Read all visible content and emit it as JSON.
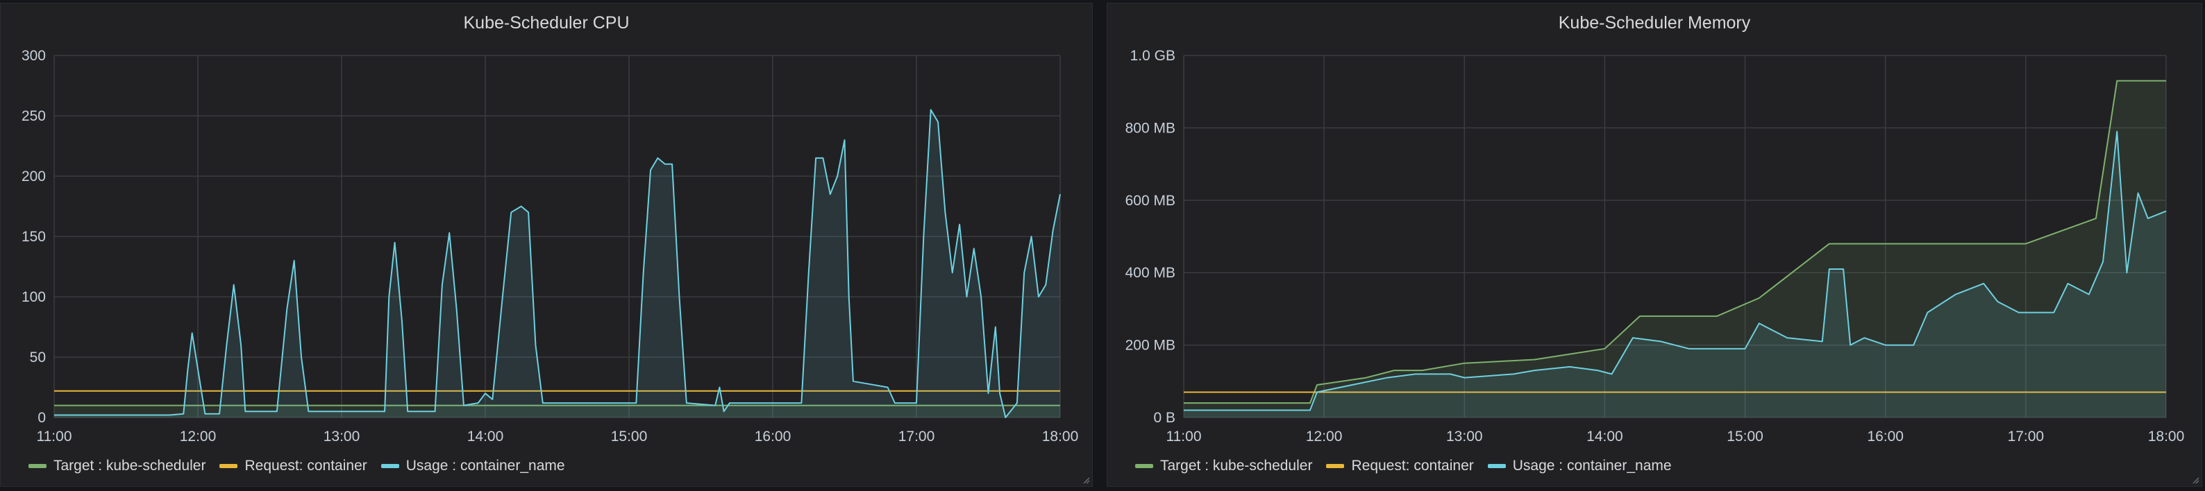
{
  "colors": {
    "target": "#7eb26d",
    "request": "#eab839",
    "usage": "#6ed0e0",
    "grid": "#3b3c40",
    "panel_bg": "#212124",
    "text": "#c7d0d9"
  },
  "chart_data": [
    {
      "id": "cpu",
      "type": "line",
      "title": "Kube-Scheduler CPU",
      "xlabel": "",
      "ylabel": "",
      "xlim": [
        11.0,
        18.0
      ],
      "ylim": [
        0,
        300
      ],
      "x_ticks": [
        {
          "value": 11,
          "label": "11:00"
        },
        {
          "value": 12,
          "label": "12:00"
        },
        {
          "value": 13,
          "label": "13:00"
        },
        {
          "value": 14,
          "label": "14:00"
        },
        {
          "value": 15,
          "label": "15:00"
        },
        {
          "value": 16,
          "label": "16:00"
        },
        {
          "value": 17,
          "label": "17:00"
        },
        {
          "value": 18,
          "label": "18:00"
        }
      ],
      "y_ticks": [
        {
          "value": 0,
          "label": "0"
        },
        {
          "value": 50,
          "label": "50"
        },
        {
          "value": 100,
          "label": "100"
        },
        {
          "value": 150,
          "label": "150"
        },
        {
          "value": 200,
          "label": "200"
        },
        {
          "value": 250,
          "label": "250"
        },
        {
          "value": 300,
          "label": "300"
        }
      ],
      "grid": true,
      "legend_position": "bottom-left",
      "series": [
        {
          "name": "Target : kube-scheduler",
          "color_key": "target",
          "fill": true,
          "points": [
            [
              11.0,
              10
            ],
            [
              18.0,
              10
            ]
          ]
        },
        {
          "name": "Request: container",
          "color_key": "request",
          "fill": false,
          "points": [
            [
              11.0,
              22
            ],
            [
              18.0,
              22
            ]
          ]
        },
        {
          "name": "Usage : container_name",
          "color_key": "usage",
          "fill": true,
          "points": [
            [
              11.0,
              2
            ],
            [
              11.8,
              2
            ],
            [
              11.9,
              3
            ],
            [
              11.93,
              40
            ],
            [
              11.96,
              70
            ],
            [
              12.0,
              40
            ],
            [
              12.05,
              3
            ],
            [
              12.15,
              3
            ],
            [
              12.2,
              60
            ],
            [
              12.25,
              110
            ],
            [
              12.3,
              60
            ],
            [
              12.33,
              5
            ],
            [
              12.55,
              5
            ],
            [
              12.62,
              90
            ],
            [
              12.67,
              130
            ],
            [
              12.72,
              50
            ],
            [
              12.77,
              5
            ],
            [
              13.3,
              5
            ],
            [
              13.33,
              100
            ],
            [
              13.37,
              145
            ],
            [
              13.42,
              80
            ],
            [
              13.46,
              5
            ],
            [
              13.65,
              5
            ],
            [
              13.7,
              110
            ],
            [
              13.75,
              153
            ],
            [
              13.8,
              90
            ],
            [
              13.85,
              10
            ],
            [
              13.95,
              12
            ],
            [
              14.0,
              20
            ],
            [
              14.05,
              15
            ],
            [
              14.12,
              100
            ],
            [
              14.18,
              170
            ],
            [
              14.25,
              175
            ],
            [
              14.3,
              170
            ],
            [
              14.35,
              60
            ],
            [
              14.4,
              12
            ],
            [
              15.05,
              12
            ],
            [
              15.1,
              120
            ],
            [
              15.15,
              205
            ],
            [
              15.2,
              215
            ],
            [
              15.25,
              210
            ],
            [
              15.3,
              210
            ],
            [
              15.35,
              100
            ],
            [
              15.4,
              12
            ],
            [
              15.6,
              10
            ],
            [
              15.63,
              25
            ],
            [
              15.66,
              5
            ],
            [
              15.7,
              12
            ],
            [
              16.2,
              12
            ],
            [
              16.25,
              120
            ],
            [
              16.3,
              215
            ],
            [
              16.35,
              215
            ],
            [
              16.4,
              185
            ],
            [
              16.45,
              200
            ],
            [
              16.5,
              230
            ],
            [
              16.53,
              100
            ],
            [
              16.56,
              30
            ],
            [
              16.8,
              25
            ],
            [
              16.85,
              12
            ],
            [
              17.0,
              12
            ],
            [
              17.05,
              150
            ],
            [
              17.1,
              255
            ],
            [
              17.15,
              245
            ],
            [
              17.2,
              170
            ],
            [
              17.25,
              120
            ],
            [
              17.3,
              160
            ],
            [
              17.35,
              100
            ],
            [
              17.4,
              140
            ],
            [
              17.45,
              100
            ],
            [
              17.5,
              20
            ],
            [
              17.55,
              75
            ],
            [
              17.58,
              20
            ],
            [
              17.62,
              0
            ],
            [
              17.7,
              12
            ],
            [
              17.75,
              120
            ],
            [
              17.8,
              150
            ],
            [
              17.85,
              100
            ],
            [
              17.9,
              110
            ],
            [
              17.95,
              155
            ],
            [
              18.0,
              185
            ]
          ]
        }
      ]
    },
    {
      "id": "mem",
      "type": "line",
      "title": "Kube-Scheduler Memory",
      "xlabel": "",
      "ylabel": "",
      "xlim": [
        11.0,
        18.0
      ],
      "ylim": [
        0,
        1.0
      ],
      "y_unit": "GB",
      "x_ticks": [
        {
          "value": 11,
          "label": "11:00"
        },
        {
          "value": 12,
          "label": "12:00"
        },
        {
          "value": 13,
          "label": "13:00"
        },
        {
          "value": 14,
          "label": "14:00"
        },
        {
          "value": 15,
          "label": "15:00"
        },
        {
          "value": 16,
          "label": "16:00"
        },
        {
          "value": 17,
          "label": "17:00"
        },
        {
          "value": 18,
          "label": "18:00"
        }
      ],
      "y_ticks": [
        {
          "value": 0,
          "label": "0 B"
        },
        {
          "value": 0.2,
          "label": "200 MB"
        },
        {
          "value": 0.4,
          "label": "400 MB"
        },
        {
          "value": 0.6,
          "label": "600 MB"
        },
        {
          "value": 0.8,
          "label": "800 MB"
        },
        {
          "value": 1.0,
          "label": "1.0 GB"
        }
      ],
      "grid": true,
      "legend_position": "bottom-left",
      "series": [
        {
          "name": "Target : kube-scheduler",
          "color_key": "target",
          "fill": true,
          "points": [
            [
              11.0,
              0.04
            ],
            [
              11.9,
              0.04
            ],
            [
              11.95,
              0.09
            ],
            [
              12.3,
              0.11
            ],
            [
              12.5,
              0.13
            ],
            [
              12.7,
              0.13
            ],
            [
              13.0,
              0.15
            ],
            [
              13.5,
              0.16
            ],
            [
              14.0,
              0.19
            ],
            [
              14.25,
              0.28
            ],
            [
              14.8,
              0.28
            ],
            [
              15.1,
              0.33
            ],
            [
              15.6,
              0.48
            ],
            [
              16.5,
              0.48
            ],
            [
              17.0,
              0.48
            ],
            [
              17.5,
              0.55
            ],
            [
              17.65,
              0.93
            ],
            [
              18.0,
              0.93
            ]
          ]
        },
        {
          "name": "Request: container",
          "color_key": "request",
          "fill": false,
          "points": [
            [
              11.0,
              0.07
            ],
            [
              18.0,
              0.07
            ]
          ]
        },
        {
          "name": "Usage : container_name",
          "color_key": "usage",
          "fill": true,
          "points": [
            [
              11.0,
              0.02
            ],
            [
              11.9,
              0.02
            ],
            [
              11.95,
              0.07
            ],
            [
              12.2,
              0.09
            ],
            [
              12.45,
              0.11
            ],
            [
              12.65,
              0.12
            ],
            [
              12.9,
              0.12
            ],
            [
              13.0,
              0.11
            ],
            [
              13.35,
              0.12
            ],
            [
              13.5,
              0.13
            ],
            [
              13.75,
              0.14
            ],
            [
              13.95,
              0.13
            ],
            [
              14.05,
              0.12
            ],
            [
              14.2,
              0.22
            ],
            [
              14.4,
              0.21
            ],
            [
              14.6,
              0.19
            ],
            [
              15.0,
              0.19
            ],
            [
              15.1,
              0.26
            ],
            [
              15.3,
              0.22
            ],
            [
              15.55,
              0.21
            ],
            [
              15.6,
              0.41
            ],
            [
              15.7,
              0.41
            ],
            [
              15.75,
              0.2
            ],
            [
              15.85,
              0.22
            ],
            [
              16.0,
              0.2
            ],
            [
              16.2,
              0.2
            ],
            [
              16.3,
              0.29
            ],
            [
              16.5,
              0.34
            ],
            [
              16.7,
              0.37
            ],
            [
              16.8,
              0.32
            ],
            [
              16.95,
              0.29
            ],
            [
              17.2,
              0.29
            ],
            [
              17.3,
              0.37
            ],
            [
              17.45,
              0.34
            ],
            [
              17.55,
              0.43
            ],
            [
              17.65,
              0.79
            ],
            [
              17.72,
              0.4
            ],
            [
              17.8,
              0.62
            ],
            [
              17.87,
              0.55
            ],
            [
              18.0,
              0.57
            ]
          ]
        }
      ]
    }
  ]
}
